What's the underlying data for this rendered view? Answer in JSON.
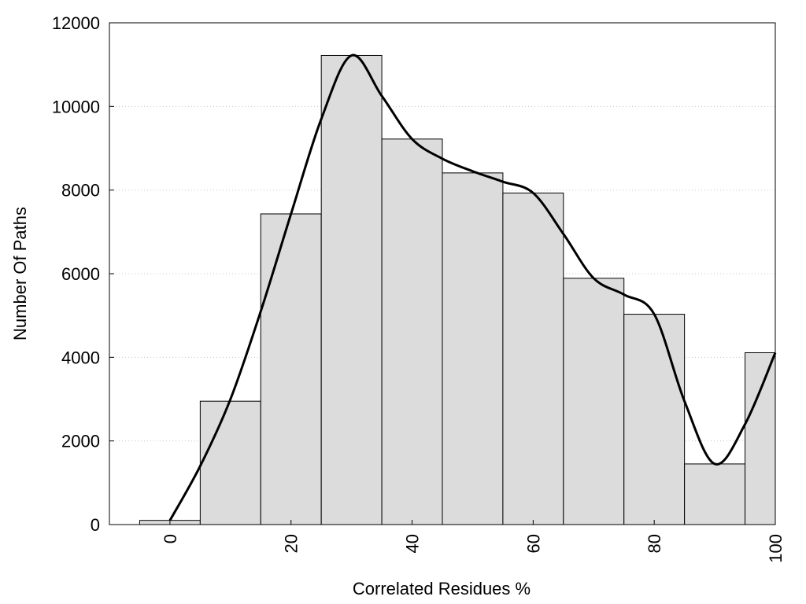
{
  "chart_data": {
    "type": "bar",
    "subtype": "histogram with smoothed density curve",
    "title": "",
    "xlabel": "Correlated Residues %",
    "ylabel": "Number Of Paths",
    "xlim": [
      -10,
      100
    ],
    "ylim": [
      0,
      12000
    ],
    "x_ticks": [
      0,
      20,
      40,
      60,
      80,
      100
    ],
    "x_tick_labels": [
      "0",
      "20",
      "40",
      "60",
      "80",
      "100"
    ],
    "y_ticks": [
      0,
      2000,
      4000,
      6000,
      8000,
      10000,
      12000
    ],
    "y_tick_labels": [
      "0",
      "2000",
      "4000",
      "6000",
      "8000",
      "10000",
      "12000"
    ],
    "x_tick_rotation": "vertical",
    "grid": "horizontal dotted",
    "bar_width": 10,
    "categories": [
      0,
      10,
      20,
      30,
      40,
      50,
      60,
      70,
      80,
      90,
      100
    ],
    "series": [
      {
        "values": [
          100,
          2950,
          7430,
          11220,
          9220,
          8410,
          7930,
          5890,
          5030,
          1450,
          4110
        ],
        "color": "#dcdcdc",
        "edge_color": "#000000"
      }
    ],
    "curve": {
      "color": "#000000",
      "points": [
        [
          0,
          100
        ],
        [
          5,
          1400
        ],
        [
          10,
          3000
        ],
        [
          15,
          5100
        ],
        [
          20,
          7430
        ],
        [
          25,
          9700
        ],
        [
          30,
          11220
        ],
        [
          35,
          10250
        ],
        [
          40,
          9220
        ],
        [
          45,
          8750
        ],
        [
          50,
          8450
        ],
        [
          55,
          8200
        ],
        [
          60,
          7930
        ],
        [
          65,
          6950
        ],
        [
          70,
          5890
        ],
        [
          75,
          5500
        ],
        [
          80,
          5030
        ],
        [
          85,
          2950
        ],
        [
          90,
          1450
        ],
        [
          95,
          2400
        ],
        [
          100,
          4110
        ]
      ]
    }
  }
}
